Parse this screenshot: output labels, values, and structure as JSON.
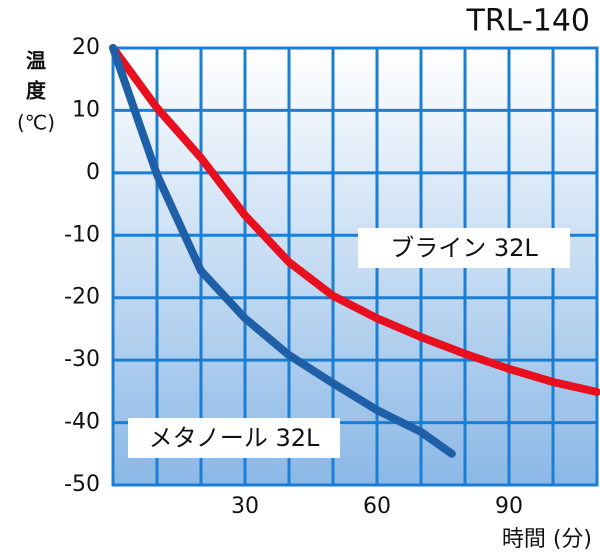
{
  "chart_data": {
    "type": "line",
    "title": "TRL-140",
    "ylabel": [
      "温",
      "度",
      "(℃)"
    ],
    "xlabel": "時間 (分)",
    "xlim": [
      0,
      110
    ],
    "ylim": [
      -50,
      20
    ],
    "xticks": [
      30,
      60,
      90
    ],
    "xminorticks": [
      10,
      20,
      40,
      50,
      70,
      80,
      100,
      110
    ],
    "yticks": [
      -50,
      -40,
      -30,
      -20,
      -10,
      0,
      10,
      20
    ],
    "grid": true,
    "series": [
      {
        "name": "ブライン 32L",
        "color": "#e8101e",
        "x": [
          0,
          10,
          20,
          30,
          40,
          50,
          60,
          70,
          80,
          90,
          100,
          110
        ],
        "values": [
          20,
          10.4,
          2.4,
          -6.8,
          -14.3,
          -19.7,
          -23.3,
          -26.3,
          -29,
          -31.4,
          -33.5,
          -35.1
        ]
      },
      {
        "name": "メタノール 32L",
        "color": "#1f5fa8",
        "x": [
          0,
          10,
          20,
          30,
          40,
          50,
          60,
          70,
          77
        ],
        "values": [
          20,
          -0.3,
          -15.7,
          -23.3,
          -29.2,
          -33.7,
          -38,
          -41.5,
          -45
        ]
      }
    ]
  }
}
